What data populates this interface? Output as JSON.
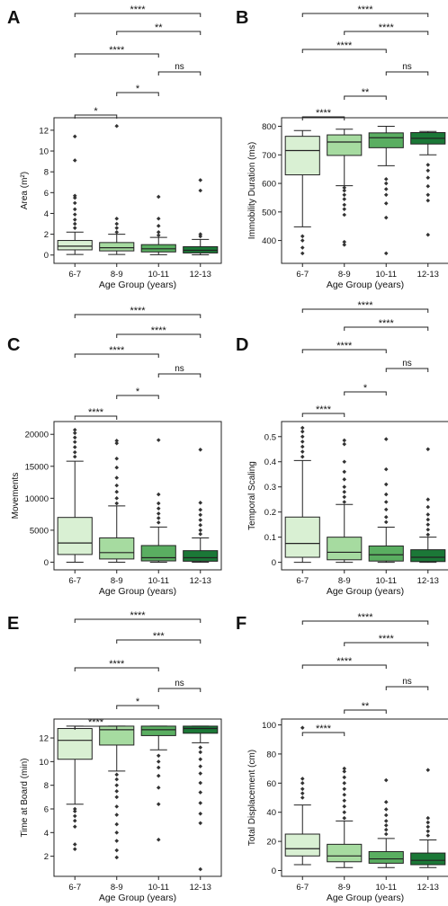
{
  "colors": {
    "g1": "#d9f0d3",
    "g2": "#a6dba0",
    "g3": "#5aae61",
    "g4": "#1b7837",
    "axis": "#222222"
  },
  "chart_data": [
    {
      "panel": "A",
      "type": "box",
      "categories": [
        "6-7",
        "8-9",
        "10-11",
        "12-13"
      ],
      "xlabel": "Age Group (years)",
      "ylabel": "Area (m²)",
      "ylim": [
        -0.8,
        13.2
      ],
      "yticks": [
        0,
        2,
        4,
        6,
        8,
        10,
        12
      ],
      "boxes": [
        {
          "q1": 0.5,
          "median": 0.85,
          "q3": 1.4,
          "wlo": 0.05,
          "whi": 2.2,
          "fliers": [
            2.6,
            3.0,
            3.4,
            3.9,
            4.4,
            5.0,
            5.5,
            5.7,
            9.1,
            11.4
          ]
        },
        {
          "q1": 0.4,
          "median": 0.7,
          "q3": 1.2,
          "wlo": 0.05,
          "whi": 2.0,
          "fliers": [
            2.2,
            2.6,
            3.0,
            3.5,
            12.4
          ]
        },
        {
          "q1": 0.3,
          "median": 0.6,
          "q3": 1.0,
          "wlo": 0.03,
          "whi": 1.7,
          "fliers": [
            1.9,
            2.2,
            2.8,
            3.5,
            5.6
          ]
        },
        {
          "q1": 0.2,
          "median": 0.45,
          "q3": 0.8,
          "wlo": 0.02,
          "whi": 1.5,
          "fliers": [
            1.8,
            2.0,
            6.2,
            7.2
          ]
        }
      ],
      "brackets": [
        {
          "from": 0,
          "to": 3,
          "label": "****"
        },
        {
          "from": 1,
          "to": 3,
          "label": "**"
        },
        {
          "from": 0,
          "to": 2,
          "label": "****"
        },
        {
          "from": 2,
          "to": 3,
          "label": "ns"
        },
        {
          "from": 1,
          "to": 2,
          "label": "*"
        },
        {
          "from": 0,
          "to": 1,
          "label": "*"
        }
      ]
    },
    {
      "panel": "B",
      "type": "box",
      "categories": [
        "6-7",
        "8-9",
        "10-11",
        "12-13"
      ],
      "xlabel": "Age Group (years)",
      "ylabel": "Immobility Duration (ms)",
      "ylim": [
        320,
        830
      ],
      "yticks": [
        400,
        500,
        600,
        700,
        800
      ],
      "boxes": [
        {
          "q1": 630,
          "median": 715,
          "q3": 765,
          "wlo": 448,
          "whi": 785,
          "fliers": [
            355,
            375,
            400,
            415
          ]
        },
        {
          "q1": 698,
          "median": 745,
          "q3": 770,
          "wlo": 592,
          "whi": 790,
          "fliers": [
            385,
            395,
            490,
            510,
            525,
            545,
            560,
            575,
            585
          ]
        },
        {
          "q1": 725,
          "median": 760,
          "q3": 777,
          "wlo": 662,
          "whi": 800,
          "fliers": [
            355,
            480,
            530,
            560,
            580,
            600,
            615
          ]
        },
        {
          "q1": 738,
          "median": 758,
          "q3": 778,
          "wlo": 700,
          "whi": 782,
          "fliers": [
            420,
            540,
            560,
            590,
            620,
            645,
            665
          ]
        }
      ],
      "brackets": [
        {
          "from": 0,
          "to": 3,
          "label": "****"
        },
        {
          "from": 1,
          "to": 3,
          "label": "****"
        },
        {
          "from": 0,
          "to": 2,
          "label": "****"
        },
        {
          "from": 2,
          "to": 3,
          "label": "ns"
        },
        {
          "from": 1,
          "to": 2,
          "label": "**"
        },
        {
          "from": 0,
          "to": 1,
          "label": "****"
        }
      ]
    },
    {
      "panel": "C",
      "type": "box",
      "categories": [
        "6-7",
        "8-9",
        "10-11",
        "12-13"
      ],
      "xlabel": "Age Group (years)",
      "ylabel": "Movements",
      "ylim": [
        -1200,
        22000
      ],
      "yticks": [
        0,
        5000,
        10000,
        15000,
        20000
      ],
      "boxes": [
        {
          "q1": 1200,
          "median": 3000,
          "q3": 7000,
          "wlo": 0,
          "whi": 15800,
          "fliers": [
            16500,
            17200,
            18000,
            18800,
            19500,
            20200,
            20700
          ]
        },
        {
          "q1": 500,
          "median": 1500,
          "q3": 3800,
          "wlo": 0,
          "whi": 8800,
          "fliers": [
            9200,
            10000,
            11000,
            12000,
            13200,
            14800,
            16200,
            18600,
            19000
          ]
        },
        {
          "q1": 200,
          "median": 700,
          "q3": 2600,
          "wlo": 0,
          "whi": 5500,
          "fliers": [
            6200,
            6900,
            7600,
            8400,
            9200,
            10600,
            19100
          ]
        },
        {
          "q1": 150,
          "median": 700,
          "q3": 1800,
          "wlo": 0,
          "whi": 3800,
          "fliers": [
            4400,
            5000,
            5800,
            6600,
            7400,
            8200,
            9300,
            17600
          ]
        }
      ],
      "brackets": [
        {
          "from": 0,
          "to": 3,
          "label": "****"
        },
        {
          "from": 1,
          "to": 3,
          "label": "****"
        },
        {
          "from": 0,
          "to": 2,
          "label": "****"
        },
        {
          "from": 2,
          "to": 3,
          "label": "ns"
        },
        {
          "from": 1,
          "to": 2,
          "label": "*"
        },
        {
          "from": 0,
          "to": 1,
          "label": "****"
        }
      ]
    },
    {
      "panel": "D",
      "type": "box",
      "categories": [
        "6-7",
        "8-9",
        "10-11",
        "12-13"
      ],
      "xlabel": "Age Group (years)",
      "ylabel": "Temporal Scaling",
      "ylim": [
        -0.03,
        0.56
      ],
      "yticks": [
        0.0,
        0.1,
        0.2,
        0.3,
        0.4,
        0.5
      ],
      "boxes": [
        {
          "q1": 0.02,
          "median": 0.075,
          "q3": 0.18,
          "wlo": 0.0,
          "whi": 0.405,
          "fliers": [
            0.42,
            0.44,
            0.46,
            0.48,
            0.5,
            0.52,
            0.535
          ]
        },
        {
          "q1": 0.01,
          "median": 0.04,
          "q3": 0.1,
          "wlo": 0.0,
          "whi": 0.23,
          "fliers": [
            0.24,
            0.26,
            0.28,
            0.3,
            0.33,
            0.36,
            0.4,
            0.47,
            0.485
          ]
        },
        {
          "q1": 0.005,
          "median": 0.03,
          "q3": 0.065,
          "wlo": 0.0,
          "whi": 0.14,
          "fliers": [
            0.16,
            0.18,
            0.21,
            0.24,
            0.27,
            0.31,
            0.37,
            0.49
          ]
        },
        {
          "q1": 0.003,
          "median": 0.02,
          "q3": 0.05,
          "wlo": 0.0,
          "whi": 0.1,
          "fliers": [
            0.11,
            0.13,
            0.15,
            0.17,
            0.19,
            0.22,
            0.25,
            0.45
          ]
        }
      ],
      "brackets": [
        {
          "from": 0,
          "to": 3,
          "label": "****"
        },
        {
          "from": 1,
          "to": 3,
          "label": "****"
        },
        {
          "from": 0,
          "to": 2,
          "label": "****"
        },
        {
          "from": 2,
          "to": 3,
          "label": "ns"
        },
        {
          "from": 1,
          "to": 2,
          "label": "*"
        },
        {
          "from": 0,
          "to": 1,
          "label": "****"
        }
      ]
    },
    {
      "panel": "E",
      "type": "box",
      "categories": [
        "6-7",
        "8-9",
        "10-11",
        "12-13"
      ],
      "xlabel": "Age Group (years)",
      "ylabel": "Time at Board (min)",
      "ylim": [
        0.3,
        13.6
      ],
      "yticks": [
        2,
        4,
        6,
        8,
        10,
        12
      ],
      "boxes": [
        {
          "q1": 10.2,
          "median": 11.8,
          "q3": 12.8,
          "wlo": 6.4,
          "whi": 13.0,
          "fliers": [
            2.6,
            3.0,
            4.5,
            5.0,
            5.4,
            5.8,
            6.0
          ]
        },
        {
          "q1": 11.4,
          "median": 12.7,
          "q3": 13.0,
          "wlo": 9.2,
          "whi": 13.0,
          "fliers": [
            1.9,
            2.5,
            3.3,
            4.0,
            4.7,
            5.5,
            6.2,
            7.0,
            7.5,
            8.0,
            8.5,
            8.9
          ]
        },
        {
          "q1": 12.2,
          "median": 12.7,
          "q3": 13.0,
          "wlo": 11.0,
          "whi": 13.0,
          "fliers": [
            3.4,
            6.4,
            7.8,
            8.8,
            9.5,
            10.0,
            10.5
          ]
        },
        {
          "q1": 12.4,
          "median": 12.8,
          "q3": 13.0,
          "wlo": 11.6,
          "whi": 13.0,
          "fliers": [
            0.9,
            4.8,
            5.6,
            6.5,
            7.4,
            8.2,
            9.0,
            9.6,
            10.2,
            10.8,
            11.2
          ]
        }
      ],
      "brackets": [
        {
          "from": 0,
          "to": 3,
          "label": "****"
        },
        {
          "from": 1,
          "to": 3,
          "label": "***"
        },
        {
          "from": 0,
          "to": 2,
          "label": "****"
        },
        {
          "from": 2,
          "to": 3,
          "label": "ns"
        },
        {
          "from": 1,
          "to": 2,
          "label": "*"
        },
        {
          "from": 0,
          "to": 1,
          "label": "****"
        }
      ]
    },
    {
      "panel": "F",
      "type": "box",
      "categories": [
        "6-7",
        "8-9",
        "10-11",
        "12-13"
      ],
      "xlabel": "Age Group (years)",
      "ylabel": "Total Displacement (cm)",
      "ylim": [
        -4,
        104
      ],
      "yticks": [
        0,
        20,
        40,
        60,
        80,
        100
      ],
      "boxes": [
        {
          "q1": 10,
          "median": 15,
          "q3": 25,
          "wlo": 4,
          "whi": 45,
          "fliers": [
            50,
            53,
            56,
            60,
            63,
            98
          ]
        },
        {
          "q1": 6,
          "median": 10,
          "q3": 18,
          "wlo": 2,
          "whi": 34,
          "fliers": [
            36,
            40,
            44,
            48,
            52,
            56,
            60,
            64,
            68,
            70
          ]
        },
        {
          "q1": 5,
          "median": 8,
          "q3": 13,
          "wlo": 2,
          "whi": 22,
          "fliers": [
            25,
            28,
            31,
            34,
            38,
            42,
            47,
            62
          ]
        },
        {
          "q1": 4,
          "median": 7,
          "q3": 12,
          "wlo": 2,
          "whi": 21,
          "fliers": [
            24,
            27,
            30,
            33,
            36,
            69
          ]
        }
      ],
      "brackets": [
        {
          "from": 0,
          "to": 3,
          "label": "****"
        },
        {
          "from": 1,
          "to": 3,
          "label": "****"
        },
        {
          "from": 0,
          "to": 2,
          "label": "****"
        },
        {
          "from": 2,
          "to": 3,
          "label": "ns"
        },
        {
          "from": 1,
          "to": 2,
          "label": "**"
        },
        {
          "from": 0,
          "to": 1,
          "label": "****"
        }
      ]
    }
  ]
}
